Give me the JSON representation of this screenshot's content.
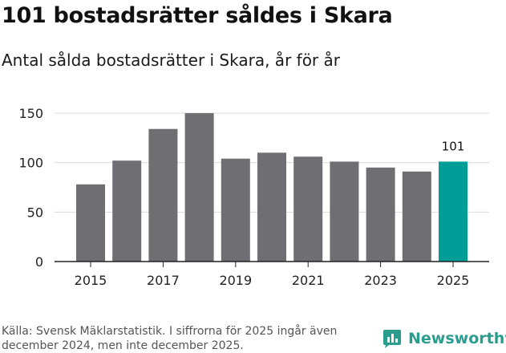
{
  "header": {
    "title": "101 bostadsrätter såldes i Skara",
    "subtitle": "Antal sålda bostadsrätter i Skara, år för år"
  },
  "footer": {
    "source": "Källa: Svensk Mäklarstatistik. I siffrorna för 2025 ingår även december 2024, men inte december 2025.",
    "brand": "Newsworthy"
  },
  "colors": {
    "bar": "#6f6e73",
    "highlight": "#009e96",
    "grid": "#dcdcdc",
    "axis": "#222222",
    "brand": "#2a9d8f"
  },
  "chart_data": {
    "type": "bar",
    "title": "Antal sålda bostadsrätter i Skara, år för år",
    "xlabel": "",
    "ylabel": "",
    "categories": [
      "2015",
      "2016",
      "2017",
      "2018",
      "2019",
      "2020",
      "2021",
      "2022",
      "2023",
      "2024",
      "2025"
    ],
    "values": [
      78,
      102,
      134,
      150,
      104,
      110,
      106,
      101,
      95,
      91,
      101
    ],
    "x_tick_labels": [
      "2015",
      "2017",
      "2019",
      "2021",
      "2023",
      "2025"
    ],
    "y_ticks": [
      0,
      50,
      100,
      150
    ],
    "ylim": [
      0,
      150
    ],
    "highlight_category": "2025",
    "data_labels": [
      {
        "category": "2025",
        "text": "101"
      }
    ],
    "grid": true
  }
}
